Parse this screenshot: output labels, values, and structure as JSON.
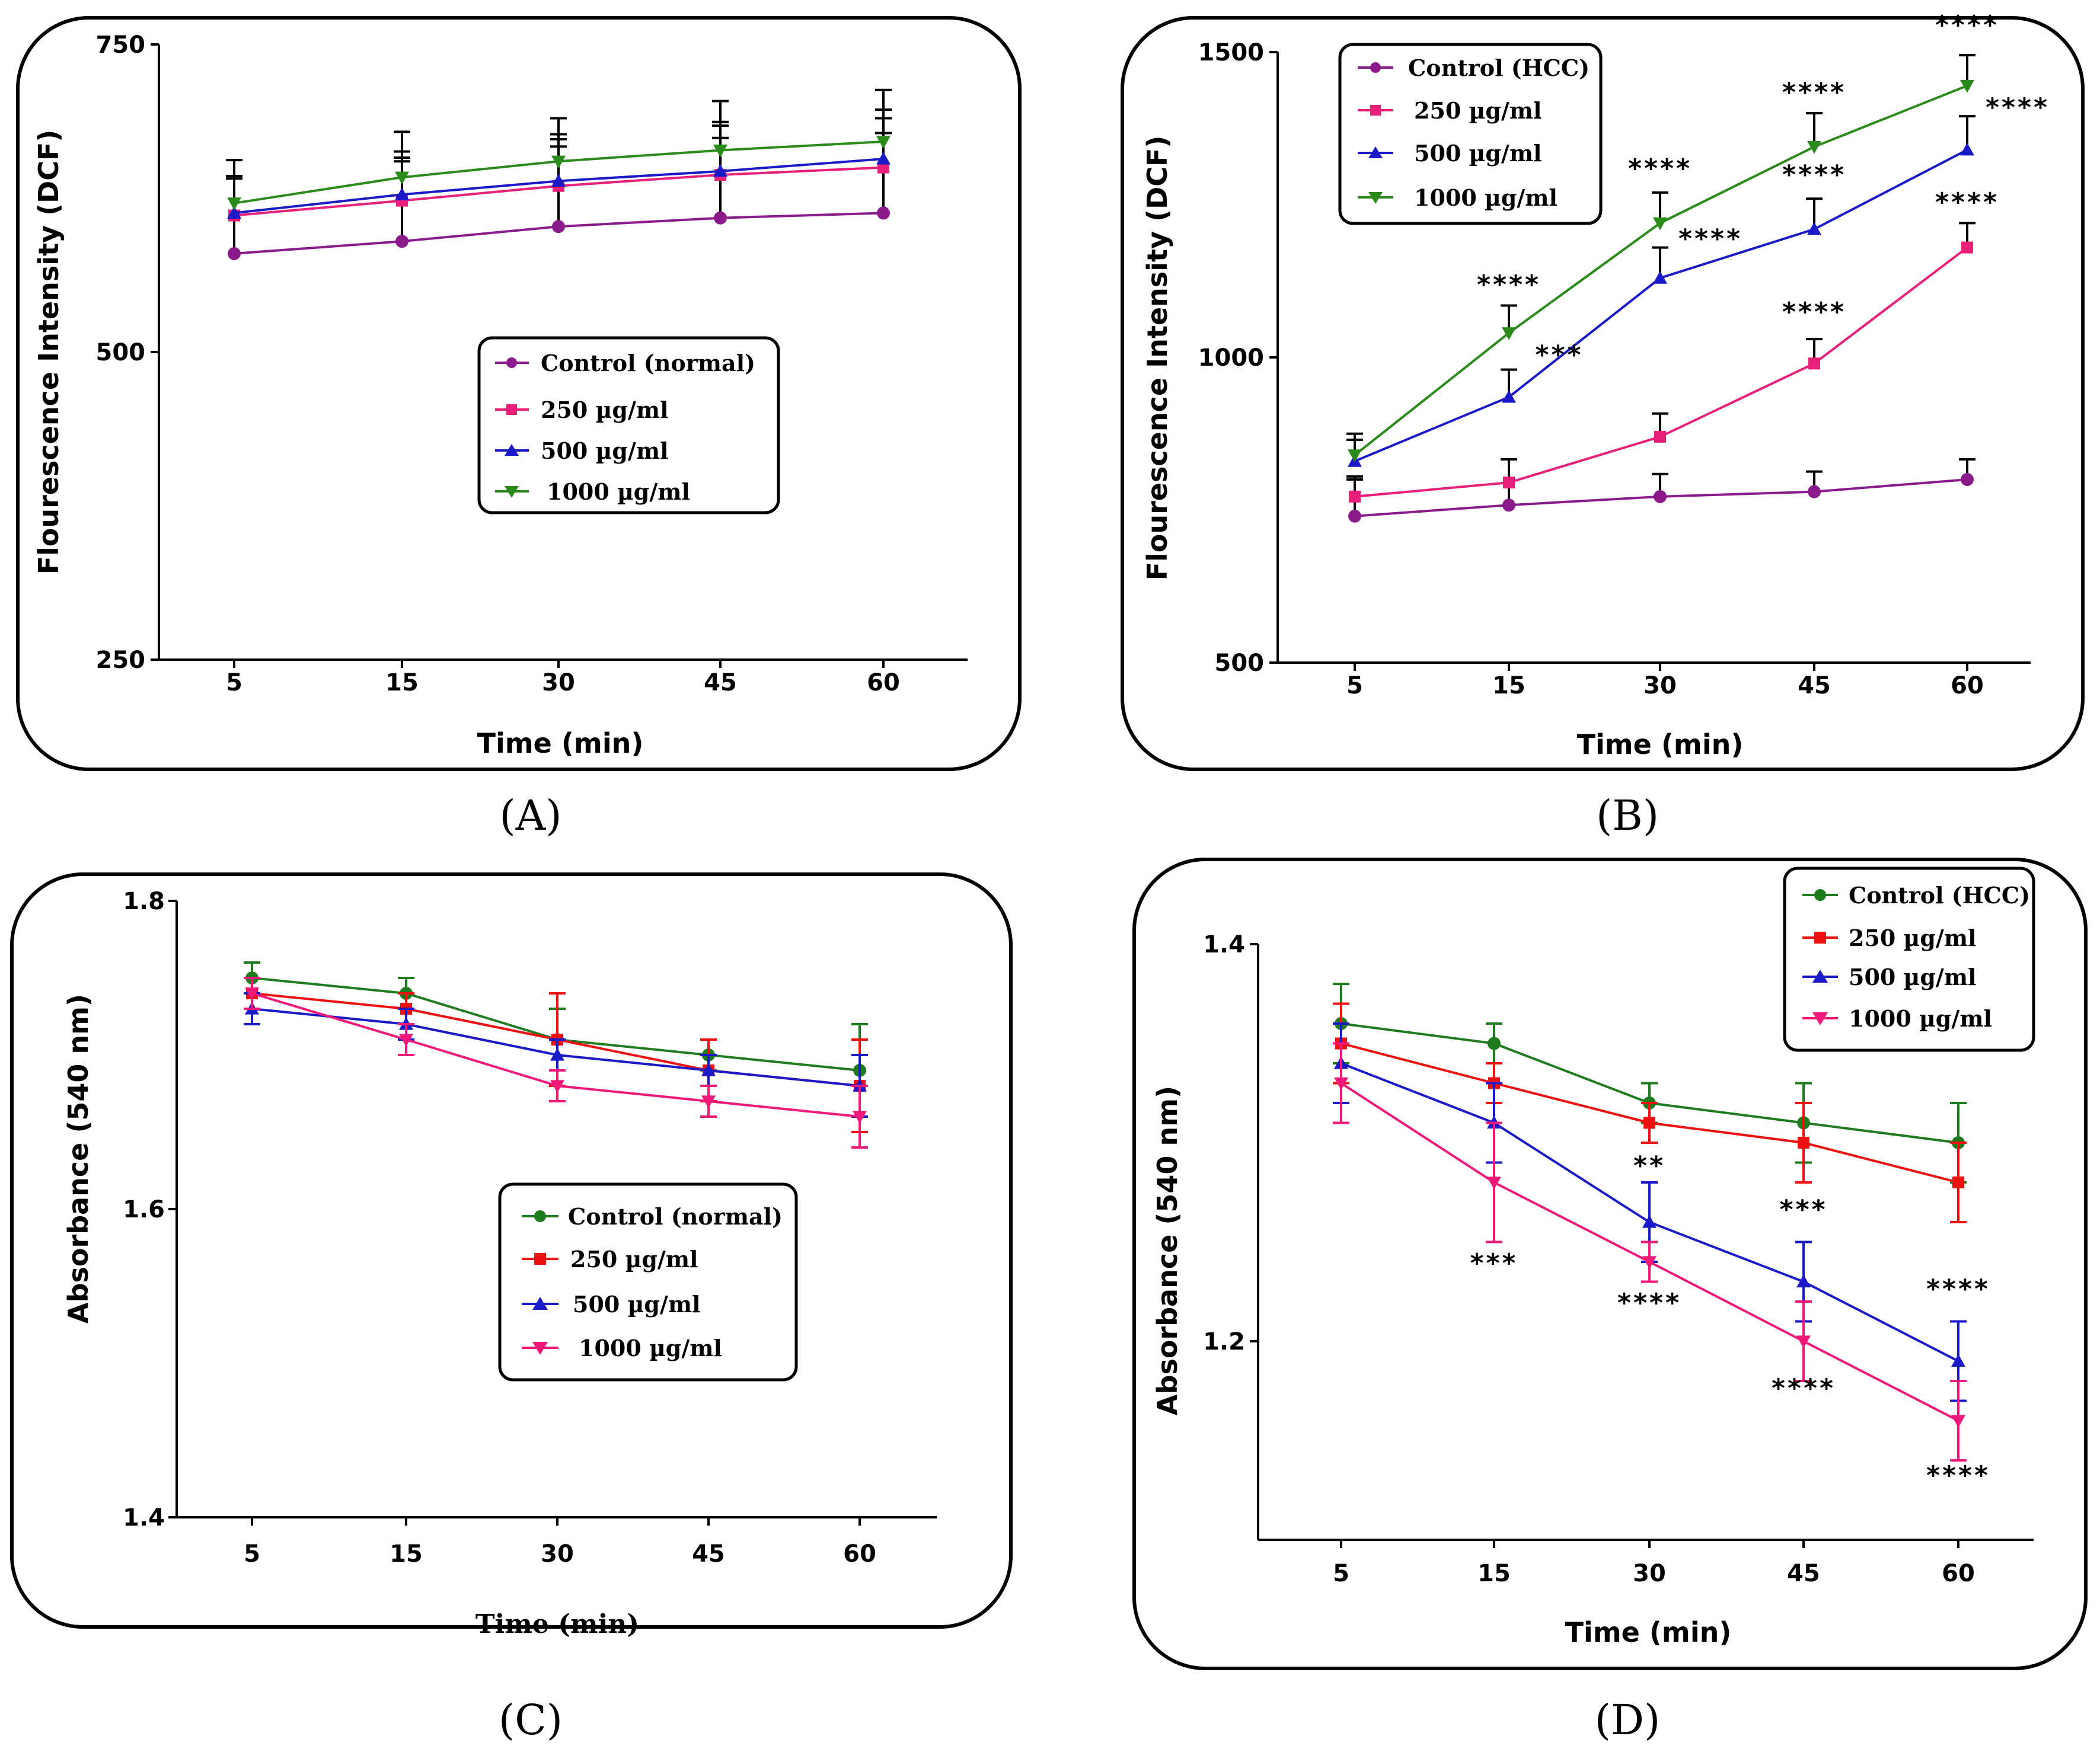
{
  "chart_data": [
    {
      "id": "A",
      "panel_label": "(A)",
      "type": "line",
      "xlabel": "Time (min)",
      "ylabel": "Flourescence Intensity (DCF)",
      "categories": [
        "5",
        "15",
        "30",
        "45",
        "60"
      ],
      "ylim": [
        250,
        750
      ],
      "yticks": [
        "250",
        "500",
        "750"
      ],
      "legend_position": "center-right",
      "series": [
        {
          "name": "Control (normal)",
          "color": "#8B1A8B",
          "marker": "circle",
          "values": [
            580,
            590,
            602,
            609,
            613
          ],
          "errors": [
            63,
            65,
            65,
            65,
            65
          ]
        },
        {
          "name": "250 µg/ml",
          "color": "#E8207A",
          "marker": "square",
          "values": [
            611,
            623,
            635,
            644,
            650
          ],
          "errors": [
            30,
            35,
            38,
            40,
            40
          ]
        },
        {
          "name": "500 µg/ml",
          "color": "#1A1AC8",
          "marker": "triangle-up",
          "values": [
            613,
            628,
            639,
            647,
            657
          ],
          "errors": [
            30,
            35,
            38,
            40,
            40
          ]
        },
        {
          "name": "1000 µg/ml",
          "color": "#2A8A1A",
          "marker": "triangle-down",
          "values": [
            621,
            642,
            655,
            664,
            671
          ],
          "errors": [
            35,
            37,
            35,
            40,
            42
          ]
        }
      ],
      "annotations": []
    },
    {
      "id": "B",
      "panel_label": "(B)",
      "type": "line",
      "xlabel": "Time (min)",
      "ylabel": "Flourescence Intensity (DCF)",
      "categories": [
        "5",
        "15",
        "30",
        "45",
        "60"
      ],
      "ylim": [
        500,
        1500
      ],
      "yticks": [
        "500",
        "1000",
        "1500"
      ],
      "legend_position": "top-left",
      "series": [
        {
          "name": "Control (HCC)",
          "color": "#8B1A8B",
          "marker": "circle",
          "values": [
            740,
            758,
            772,
            780,
            800
          ],
          "errors": [
            60,
            75,
            37,
            33,
            33
          ]
        },
        {
          "name": "250 µg/ml",
          "color": "#E8207A",
          "marker": "square",
          "values": [
            772,
            795,
            870,
            990,
            1180
          ],
          "errors": [
            33,
            38,
            38,
            40,
            40
          ]
        },
        {
          "name": "500 µg/ml",
          "color": "#1A1AC8",
          "marker": "triangle-up",
          "values": [
            830,
            935,
            1130,
            1210,
            1340
          ],
          "errors": [
            35,
            45,
            50,
            50,
            55
          ]
        },
        {
          "name": "1000 µg/ml",
          "color": "#2A8A1A",
          "marker": "triangle-down",
          "values": [
            840,
            1040,
            1220,
            1345,
            1445
          ],
          "errors": [
            35,
            45,
            50,
            55,
            50
          ]
        }
      ],
      "annotations": [
        {
          "text": "****",
          "x": "15",
          "y": 1105
        },
        {
          "text": "***",
          "x": "15",
          "y": 990,
          "offset": "right"
        },
        {
          "text": "****",
          "x": "30",
          "y": 1295
        },
        {
          "text": "****",
          "x": "30",
          "y": 1180,
          "offset": "right"
        },
        {
          "text": "****",
          "x": "45",
          "y": 1420
        },
        {
          "text": "****",
          "x": "45",
          "y": 1285
        },
        {
          "text": "****",
          "x": "45",
          "y": 1060
        },
        {
          "text": "****",
          "x": "60",
          "y": 1530
        },
        {
          "text": "****",
          "x": "60",
          "y": 1395,
          "offset": "right"
        },
        {
          "text": "****",
          "x": "60",
          "y": 1240
        }
      ]
    },
    {
      "id": "C",
      "panel_label": "(C)",
      "type": "line",
      "xlabel": "Time (min)",
      "ylabel": "Absorbance (540 nm)",
      "categories": [
        "5",
        "15",
        "30",
        "45",
        "60"
      ],
      "ylim": [
        1.4,
        1.8
      ],
      "yticks": [
        "1.4",
        "1.6",
        "1.8"
      ],
      "legend_position": "center-right",
      "series": [
        {
          "name": "Control (normal)",
          "color": "#1E7B1E",
          "marker": "circle",
          "values": [
            1.75,
            1.74,
            1.71,
            1.7,
            1.69
          ],
          "errors": [
            0.01,
            0.01,
            0.02,
            0.01,
            0.03
          ]
        },
        {
          "name": "250 µg/ml",
          "color": "#EE1111",
          "marker": "square",
          "values": [
            1.74,
            1.73,
            1.71,
            1.69,
            1.68
          ],
          "errors": [
            0.01,
            0.01,
            0.03,
            0.02,
            0.03
          ]
        },
        {
          "name": "500 µg/ml",
          "color": "#1A1AC8",
          "marker": "triangle-up",
          "values": [
            1.73,
            1.72,
            1.7,
            1.69,
            1.68
          ],
          "errors": [
            0.01,
            0.01,
            0.01,
            0.01,
            0.02
          ]
        },
        {
          "name": "1000 µg/ml",
          "color": "#F0197A",
          "marker": "triangle-down",
          "values": [
            1.74,
            1.71,
            1.68,
            1.67,
            1.66
          ],
          "errors": [
            0.01,
            0.01,
            0.01,
            0.01,
            0.02
          ]
        }
      ],
      "annotations": []
    },
    {
      "id": "D",
      "panel_label": "(D)",
      "type": "line",
      "xlabel": "Time (min)",
      "ylabel": "Absorbance (540 nm)",
      "categories": [
        "5",
        "15",
        "30",
        "45",
        "60"
      ],
      "ylim": [
        1.1,
        1.4
      ],
      "yticks": [
        "1.2",
        "1.4"
      ],
      "legend_position": "top-right",
      "series": [
        {
          "name": "Control (HCC)",
          "color": "#1E7B1E",
          "marker": "circle",
          "values": [
            1.36,
            1.35,
            1.32,
            1.31,
            1.3
          ],
          "errors": [
            0.02,
            0.01,
            0.01,
            0.02,
            0.02
          ]
        },
        {
          "name": "250 µg/ml",
          "color": "#EE1111",
          "marker": "square",
          "values": [
            1.35,
            1.33,
            1.31,
            1.3,
            1.28
          ],
          "errors": [
            0.02,
            0.01,
            0.01,
            0.02,
            0.02
          ]
        },
        {
          "name": "500 µg/ml",
          "color": "#1A1AC8",
          "marker": "triangle-up",
          "values": [
            1.34,
            1.31,
            1.26,
            1.23,
            1.19
          ],
          "errors": [
            0.02,
            0.02,
            0.02,
            0.02,
            0.02
          ]
        },
        {
          "name": "1000 µg/ml",
          "color": "#F0197A",
          "marker": "triangle-down",
          "values": [
            1.33,
            1.28,
            1.24,
            1.2,
            1.16
          ],
          "errors": [
            0.02,
            0.03,
            0.01,
            0.02,
            0.02
          ]
        }
      ],
      "annotations": [
        {
          "text": "***",
          "x": "15",
          "y": 1.235
        },
        {
          "text": "**",
          "x": "30",
          "y": 1.284
        },
        {
          "text": "****",
          "x": "30",
          "y": 1.215
        },
        {
          "text": "***",
          "x": "45",
          "y": 1.262
        },
        {
          "text": "****",
          "x": "45",
          "y": 1.172
        },
        {
          "text": "****",
          "x": "60",
          "y": 1.222
        },
        {
          "text": "****",
          "x": "60",
          "y": 1.128
        }
      ]
    }
  ]
}
